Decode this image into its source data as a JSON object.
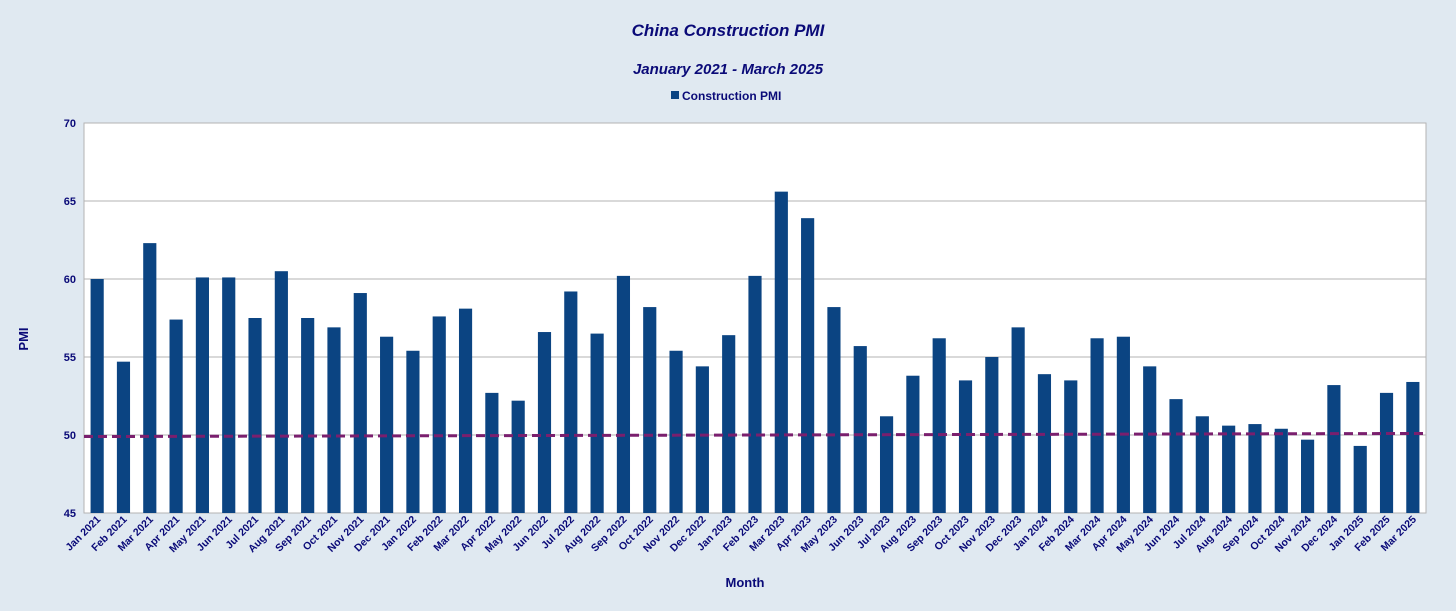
{
  "chart_data": {
    "type": "bar",
    "title": "China Construction PMI",
    "subtitle": "January 2021 - March 2025",
    "xlabel": "Month",
    "ylabel": "PMI",
    "ylim": [
      45,
      70
    ],
    "yticks": [
      45,
      50,
      55,
      60,
      65,
      70
    ],
    "grid": true,
    "legend": {
      "position": "top-center",
      "entries": [
        "Construction PMI"
      ]
    },
    "colors": {
      "bar": "#0b4482",
      "reference_line": "#7a1f6e",
      "text": "#0a0a78",
      "background": "#e0e9f1",
      "plot_bg": "#ffffff",
      "grid": "#b3b3b3"
    },
    "reference_line": {
      "style": "dashed",
      "y_start": 49.9,
      "y_end": 50.1
    },
    "categories": [
      "Jan 2021",
      "Feb 2021",
      "Mar 2021",
      "Apr 2021",
      "May 2021",
      "Jun 2021",
      "Jul 2021",
      "Aug 2021",
      "Sep 2021",
      "Oct 2021",
      "Nov 2021",
      "Dec 2021",
      "Jan 2022",
      "Feb 2022",
      "Mar 2022",
      "Apr 2022",
      "May 2022",
      "Jun 2022",
      "Jul 2022",
      "Aug 2022",
      "Sep 2022",
      "Oct 2022",
      "Nov 2022",
      "Dec 2022",
      "Jan 2023",
      "Feb 2023",
      "Mar 2023",
      "Apr 2023",
      "May 2023",
      "Jun 2023",
      "Jul 2023",
      "Aug 2023",
      "Sep 2023",
      "Oct 2023",
      "Nov 2023",
      "Dec 2023",
      "Jan 2024",
      "Feb 2024",
      "Mar 2024",
      "Apr 2024",
      "May 2024",
      "Jun 2024",
      "Jul 2024",
      "Aug 2024",
      "Sep 2024",
      "Oct 2024",
      "Nov 2024",
      "Dec 2024",
      "Jan 2025",
      "Feb 2025",
      "Mar 2025"
    ],
    "series": [
      {
        "name": "Construction PMI",
        "values": [
          60.0,
          54.7,
          62.3,
          57.4,
          60.1,
          60.1,
          57.5,
          60.5,
          57.5,
          56.9,
          59.1,
          56.3,
          55.4,
          57.6,
          58.1,
          52.7,
          52.2,
          56.6,
          59.2,
          56.5,
          60.2,
          58.2,
          55.4,
          54.4,
          56.4,
          60.2,
          65.6,
          63.9,
          58.2,
          55.7,
          51.2,
          53.8,
          56.2,
          53.5,
          55.0,
          56.9,
          53.9,
          53.5,
          56.2,
          56.3,
          54.4,
          52.3,
          51.2,
          50.6,
          50.7,
          50.4,
          49.7,
          53.2,
          49.3,
          52.7,
          53.4
        ]
      }
    ]
  }
}
